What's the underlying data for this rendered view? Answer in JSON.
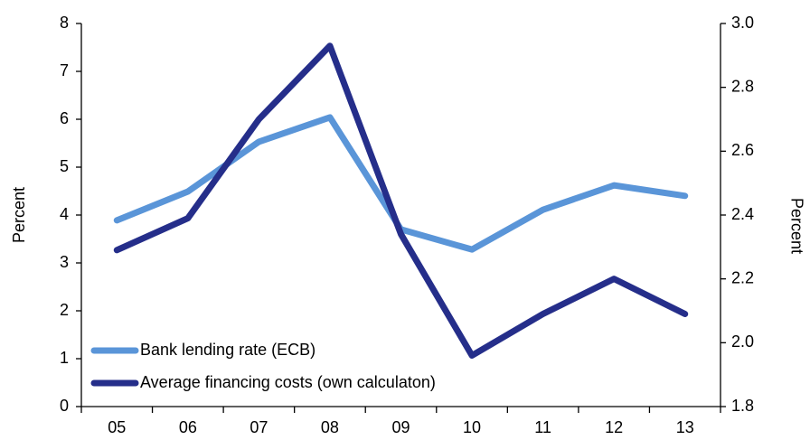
{
  "chart_data": {
    "type": "line",
    "categories": [
      "05",
      "06",
      "07",
      "08",
      "09",
      "10",
      "11",
      "12",
      "13"
    ],
    "y_label": "Percent",
    "y2_label": "Percent",
    "ylim": [
      0,
      8
    ],
    "yticks": [
      0,
      1,
      2,
      3,
      4,
      5,
      6,
      7,
      8
    ],
    "y2lim": [
      1.8,
      3.0
    ],
    "y2ticks": [
      {
        "value": 1.8,
        "label": "1.8"
      },
      {
        "value": 2.0,
        "label": "2.0"
      },
      {
        "value": 2.2,
        "label": "2.2"
      },
      {
        "value": 2.4,
        "label": "2.4"
      },
      {
        "value": 2.6,
        "label": "2.6"
      },
      {
        "value": 2.8,
        "label": "2.8"
      },
      {
        "value": 3.0,
        "label": "3.0"
      }
    ],
    "legend": "lower left",
    "series": [
      {
        "name": "Bank lending rate (ECB)",
        "color": "#5a95d8",
        "values": [
          3.89,
          4.49,
          5.53,
          6.04,
          3.7,
          3.28,
          4.11,
          4.62,
          4.4
        ]
      },
      {
        "name": "Average financing costs (own calculaton)",
        "color": "#252e8a",
        "axis": "y2",
        "values": [
          2.29,
          2.39,
          2.7,
          2.93,
          2.34,
          1.96,
          2.09,
          2.2,
          2.09
        ]
      }
    ]
  }
}
